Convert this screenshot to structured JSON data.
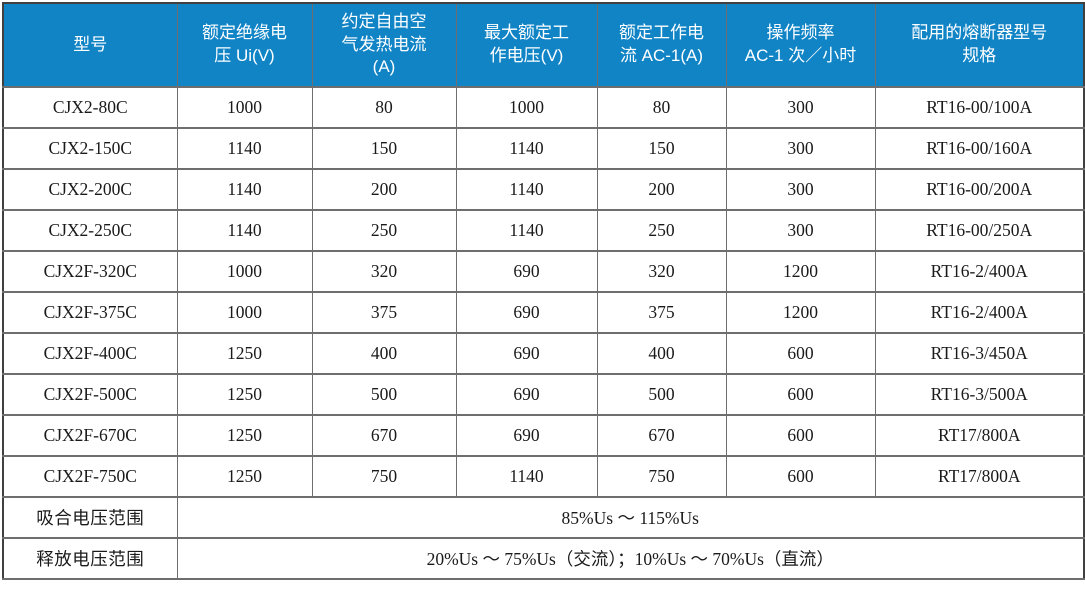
{
  "colors": {
    "header_bg": "#1184C6",
    "header_text": "#FFFFFF",
    "grid_line": "#6E6E6E",
    "outer_border": "#404040",
    "body_text": "#1A1A1A"
  },
  "table": {
    "columns": [
      "型号",
      "额定绝缘电\n压 Ui(V)",
      "约定自由空\n气发热电流\n(A)",
      "最大额定工\n作电压(V)",
      "额定工作电\n流 AC-1(A)",
      "操作频率\nAC-1 次／小时",
      "配用的熔断器型号\n规格"
    ],
    "rows": [
      [
        "CJX2-80C",
        "1000",
        "80",
        "1000",
        "80",
        "300",
        "RT16-00/100A"
      ],
      [
        "CJX2-150C",
        "1140",
        "150",
        "1140",
        "150",
        "300",
        "RT16-00/160A"
      ],
      [
        "CJX2-200C",
        "1140",
        "200",
        "1140",
        "200",
        "300",
        "RT16-00/200A"
      ],
      [
        "CJX2-250C",
        "1140",
        "250",
        "1140",
        "250",
        "300",
        "RT16-00/250A"
      ],
      [
        "CJX2F-320C",
        "1000",
        "320",
        "690",
        "320",
        "1200",
        "RT16-2/400A"
      ],
      [
        "CJX2F-375C",
        "1000",
        "375",
        "690",
        "375",
        "1200",
        "RT16-2/400A"
      ],
      [
        "CJX2F-400C",
        "1250",
        "400",
        "690",
        "400",
        "600",
        "RT16-3/450A"
      ],
      [
        "CJX2F-500C",
        "1250",
        "500",
        "690",
        "500",
        "600",
        "RT16-3/500A"
      ],
      [
        "CJX2F-670C",
        "1250",
        "670",
        "690",
        "670",
        "600",
        "RT17/800A"
      ],
      [
        "CJX2F-750C",
        "1250",
        "750",
        "1140",
        "750",
        "600",
        "RT17/800A"
      ]
    ],
    "footer_rows": [
      {
        "label": "吸合电压范围",
        "value": "85%Us ～ 115%Us"
      },
      {
        "label": "释放电压范围",
        "value": "20%Us ～ 75%Us（交流）；10%Us ～ 70%Us（直流）"
      }
    ]
  }
}
